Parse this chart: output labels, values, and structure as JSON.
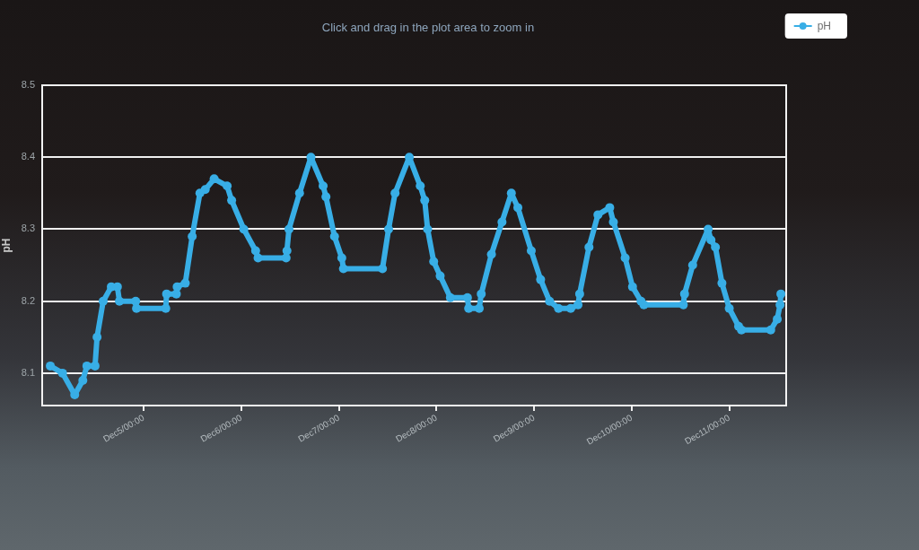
{
  "chart_data": {
    "type": "line",
    "subtitle": "Click and drag in the plot area to zoom in",
    "ylabel": "pH",
    "x": [
      "--12-04T01:00",
      "--12-04T04:00",
      "--12-04T07:00",
      "--12-04T09:00",
      "--12-04T10:00",
      "--12-04T12:00",
      "--12-04T12:30",
      "--12-04T14:00",
      "--12-04T16:00",
      "--12-04T17:30",
      "--12-04T18:00",
      "--12-04T22:00",
      "--12-04T22:12",
      "--12-05T05:24",
      "--12-05T05:36",
      "--12-05T08:00",
      "--12-05T08:12",
      "--12-05T10:12",
      "--12-05T11:54",
      "--12-05T13:48",
      "--12-05T15:06",
      "--12-05T17:18",
      "--12-05T20:30",
      "--12-05T21:36",
      "--12-06T00:36",
      "--12-06T03:30",
      "--12-06T04:06",
      "--12-06T11:00",
      "--12-06T11:12",
      "--12-06T11:42",
      "--12-06T14:18",
      "--12-06T17:06",
      "--12-06T20:06",
      "--12-06T20:48",
      "--12-06T22:54",
      "--12-07T00:42",
      "--12-07T01:06",
      "--12-07T10:42",
      "--12-07T12:12",
      "--12-07T13:48",
      "--12-07T17:18",
      "--12-07T20:00",
      "--12-07T21:06",
      "--12-07T21:48",
      "--12-07T23:18",
      "--12-08T00:54",
      "--12-08T03:24",
      "--12-08T07:36",
      "--12-08T07:54",
      "--12-08T10:30",
      "--12-08T11:00",
      "--12-08T13:30",
      "--12-08T16:06",
      "--12-08T18:24",
      "--12-08T20:00",
      "--12-08T23:18",
      "--12-09T01:36",
      "--12-09T03:48",
      "--12-09T06:00",
      "--12-09T09:00",
      "--12-09T10:48",
      "--12-09T11:12",
      "--12-09T13:30",
      "--12-09T15:42",
      "--12-09T18:36",
      "--12-09T19:30",
      "--12-09T22:24",
      "--12-10T00:12",
      "--12-10T02:18",
      "--12-10T03:00",
      "--12-10T12:42",
      "--12-10T13:00",
      "--12-10T15:00",
      "--12-10T18:48",
      "--12-10T19:30",
      "--12-10T20:36",
      "--12-10T22:12",
      "--12-11T00:00",
      "--12-11T02:18",
      "--12-11T03:00",
      "--12-11T10:12",
      "--12-11T11:48",
      "--12-11T12:30",
      "--12-11T12:42"
    ],
    "series": [
      {
        "name": "pH",
        "color": "#38aee6",
        "values": [
          8.11,
          8.1,
          8.07,
          8.09,
          8.11,
          8.11,
          8.15,
          8.2,
          8.22,
          8.22,
          8.2,
          8.2,
          8.19,
          8.19,
          8.21,
          8.21,
          8.22,
          8.225,
          8.29,
          8.35,
          8.355,
          8.37,
          8.36,
          8.34,
          8.3,
          8.27,
          8.26,
          8.26,
          8.27,
          8.3,
          8.35,
          8.4,
          8.36,
          8.345,
          8.29,
          8.26,
          8.245,
          8.245,
          8.3,
          8.35,
          8.4,
          8.36,
          8.34,
          8.3,
          8.255,
          8.235,
          8.205,
          8.205,
          8.19,
          8.19,
          8.21,
          8.265,
          8.31,
          8.35,
          8.33,
          8.27,
          8.23,
          8.2,
          8.19,
          8.19,
          8.195,
          8.21,
          8.275,
          8.32,
          8.33,
          8.31,
          8.26,
          8.22,
          8.2,
          8.195,
          8.195,
          8.21,
          8.25,
          8.3,
          8.285,
          8.275,
          8.225,
          8.19,
          8.165,
          8.16,
          8.16,
          8.175,
          8.195,
          8.21
        ]
      }
    ],
    "xlim": [
      "--12-03T23:00",
      "--12-11T14:00"
    ],
    "xticks": [
      {
        "value": "--12-05T00:00",
        "label": "Dec5/00:00"
      },
      {
        "value": "--12-06T00:00",
        "label": "Dec6/00:00"
      },
      {
        "value": "--12-07T00:00",
        "label": "Dec7/00:00"
      },
      {
        "value": "--12-08T00:00",
        "label": "Dec8/00:00"
      },
      {
        "value": "--12-09T00:00",
        "label": "Dec9/00:00"
      },
      {
        "value": "--12-10T00:00",
        "label": "Dec10/00:00"
      },
      {
        "value": "--12-11T00:00",
        "label": "Dec11/00:00"
      }
    ],
    "ylim": [
      8.055,
      8.5
    ],
    "yticks": [
      8.1,
      8.2,
      8.3,
      8.4,
      8.5
    ],
    "grid": "y",
    "legend": "top right",
    "marker": "circle",
    "line_style": "solid"
  }
}
